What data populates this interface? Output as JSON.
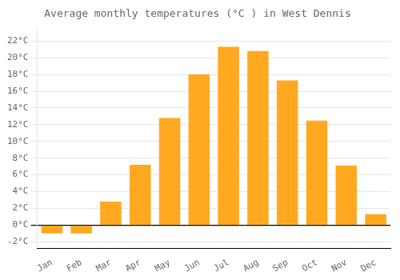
{
  "chart_data": {
    "type": "bar",
    "title": "Average monthly temperatures (°C ) in West Dennis",
    "categories": [
      "Jan",
      "Feb",
      "Mar",
      "Apr",
      "May",
      "Jun",
      "Jul",
      "Aug",
      "Sep",
      "Oct",
      "Nov",
      "Dec"
    ],
    "values": [
      -1.0,
      -1.0,
      2.8,
      7.2,
      12.8,
      18.0,
      21.3,
      20.8,
      17.3,
      12.5,
      7.1,
      1.3
    ],
    "color": "#FFA820",
    "ylim": [
      -2.8,
      23.5
    ],
    "yticks": [
      {
        "value": -2,
        "label": "-2°C"
      },
      {
        "value": 0,
        "label": "0°C"
      },
      {
        "value": 2,
        "label": "2°C"
      },
      {
        "value": 4,
        "label": "4°C"
      },
      {
        "value": 6,
        "label": "6°C"
      },
      {
        "value": 8,
        "label": "8°C"
      },
      {
        "value": 10,
        "label": "10°C"
      },
      {
        "value": 12,
        "label": "12°C"
      },
      {
        "value": 14,
        "label": "14°C"
      },
      {
        "value": 16,
        "label": "16°C"
      },
      {
        "value": 18,
        "label": "18°C"
      },
      {
        "value": 20,
        "label": "20°C"
      },
      {
        "value": 22,
        "label": "22°C"
      }
    ],
    "grid": true
  }
}
